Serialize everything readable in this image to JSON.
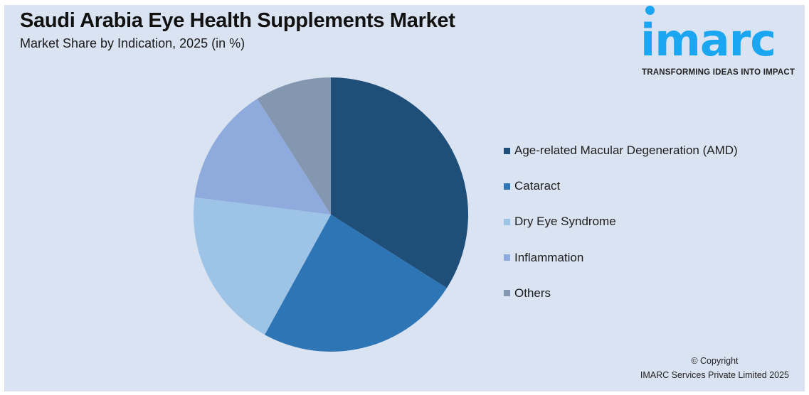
{
  "header": {
    "title": "Saudi Arabia Eye Health Supplements Market",
    "subtitle": "Market Share by Indication, 2025 (in %)"
  },
  "logo": {
    "wordmark": "imarc",
    "tagline": "TRANSFORMING IDEAS INTO IMPACT",
    "color": "#1aa6f0"
  },
  "legend": {
    "items": [
      {
        "label": "Age-related Macular Degeneration (AMD)",
        "color": "#1f4e79"
      },
      {
        "label": "Cataract",
        "color": "#2e75b6"
      },
      {
        "label": "Dry Eye Syndrome",
        "color": "#9dc3e6"
      },
      {
        "label": "Inflammation",
        "color": "#8faadc"
      },
      {
        "label": "Others",
        "color": "#8497b0"
      }
    ]
  },
  "footer": {
    "copyright_line1": "© Copyright",
    "copyright_line2": "IMARC Services Private Limited 2025"
  },
  "chart_data": {
    "type": "pie",
    "title": "Saudi Arabia Eye Health Supplements Market",
    "subtitle": "Market Share by Indication, 2025 (in %)",
    "categories": [
      "Age-related Macular Degeneration (AMD)",
      "Cataract",
      "Dry Eye Syndrome",
      "Inflammation",
      "Others"
    ],
    "values": [
      34,
      24,
      19,
      14,
      9
    ],
    "colors": [
      "#1f4e79",
      "#2e75b6",
      "#9dc3e6",
      "#8faadc",
      "#8497b0"
    ],
    "start_angle_deg": 0,
    "direction": "clockwise",
    "legend_position": "right",
    "data_labels": false
  }
}
